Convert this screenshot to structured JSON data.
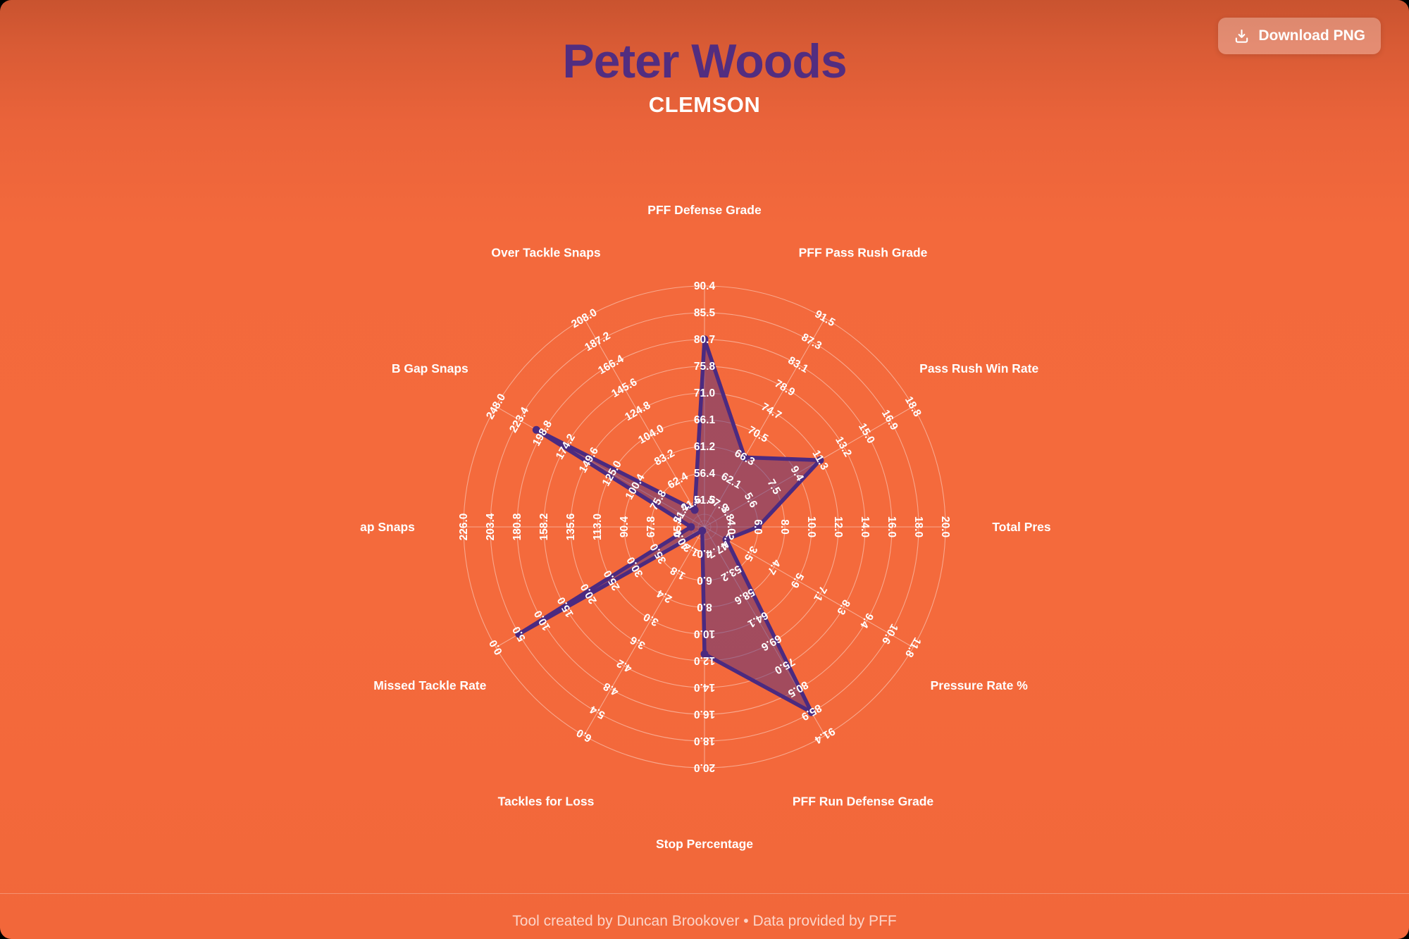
{
  "header": {
    "player_name": "Peter Woods",
    "team": "CLEMSON"
  },
  "toolbar": {
    "download_label": "Download PNG",
    "download_icon": "download-tray-arrow"
  },
  "footer": {
    "credit": "Tool created by Duncan Brookover • Data provided by PFF"
  },
  "colors": {
    "background_top": "#c9532f",
    "background_main": "#f46a3c",
    "title_purple": "#522d80",
    "polygon_stroke": "#4b2a80",
    "polygon_fill": "rgba(82,45,128,0.5)",
    "grid_line": "rgba(255,255,255,0.42)",
    "label_text": "#ffffff",
    "button_bg": "rgba(255,255,255,0.30)"
  },
  "chart_data": {
    "type": "radar",
    "rings": 9,
    "axes": [
      {
        "label": "PFF Defense Grade",
        "ticks": [
          "51.5",
          "56.4",
          "61.2",
          "66.1",
          "71.0",
          "75.8",
          "80.7",
          "85.5",
          "90.4"
        ],
        "value": 80.7
      },
      {
        "label": "PFF Pass Rush Grade",
        "ticks": [
          "57.9",
          "62.1",
          "66.3",
          "70.5",
          "74.7",
          "78.9",
          "83.1",
          "87.3",
          "91.5"
        ],
        "value": 66.3
      },
      {
        "label": "Pass Rush Win Rate",
        "ticks": [
          "3.8",
          "5.6",
          "7.5",
          "9.4",
          "11.3",
          "13.2",
          "15.0",
          "16.9",
          "18.8"
        ],
        "value": 11.3
      },
      {
        "label": "Total Pres",
        "ticks": [
          "4.0",
          "6.0",
          "8.0",
          "10.0",
          "12.0",
          "14.0",
          "16.0",
          "18.0",
          "20.0"
        ],
        "value": 6.0
      },
      {
        "label": "Pressure Rate %",
        "ticks": [
          "2.4",
          "3.5",
          "4.7",
          "5.9",
          "7.1",
          "8.3",
          "9.4",
          "10.6",
          "11.8"
        ],
        "value": 2.4
      },
      {
        "label": "PFF Run Defense Grade",
        "ticks": [
          "47.7",
          "53.2",
          "58.6",
          "64.1",
          "69.6",
          "75.0",
          "80.5",
          "85.9",
          "91.4"
        ],
        "value": 85.9
      },
      {
        "label": "Stop Percentage",
        "ticks": [
          "4.0",
          "6.0",
          "8.0",
          "10.0",
          "12.0",
          "14.0",
          "16.0",
          "18.0",
          "20.0"
        ],
        "value": 11.5
      },
      {
        "label": "Tackles for Loss",
        "ticks": [
          "1.2",
          "1.8",
          "2.4",
          "3.0",
          "3.6",
          "4.2",
          "4.8",
          "5.4",
          "6.0"
        ],
        "value": 0.7
      },
      {
        "label": "Missed Tackle Rate",
        "ticks": [
          "40.0",
          "35.0",
          "30.0",
          "25.0",
          "20.0",
          "15.0",
          "10.0",
          "5.0",
          "0.0"
        ],
        "value": 5.0
      },
      {
        "label": "ap Snaps",
        "ticks": [
          "45.2",
          "67.8",
          "90.4",
          "113.0",
          "135.6",
          "158.2",
          "180.8",
          "203.4",
          "226.0"
        ],
        "value": 34
      },
      {
        "label": "B Gap Snaps",
        "ticks": [
          "51.2",
          "75.8",
          "100.4",
          "125.0",
          "149.6",
          "174.2",
          "198.8",
          "223.4",
          "248.0"
        ],
        "value": 205
      },
      {
        "label": "Over Tackle Snaps",
        "ticks": [
          "41.6",
          "62.4",
          "83.2",
          "104.0",
          "124.8",
          "145.6",
          "166.4",
          "187.2",
          "208.0"
        ],
        "value": 36
      }
    ]
  }
}
